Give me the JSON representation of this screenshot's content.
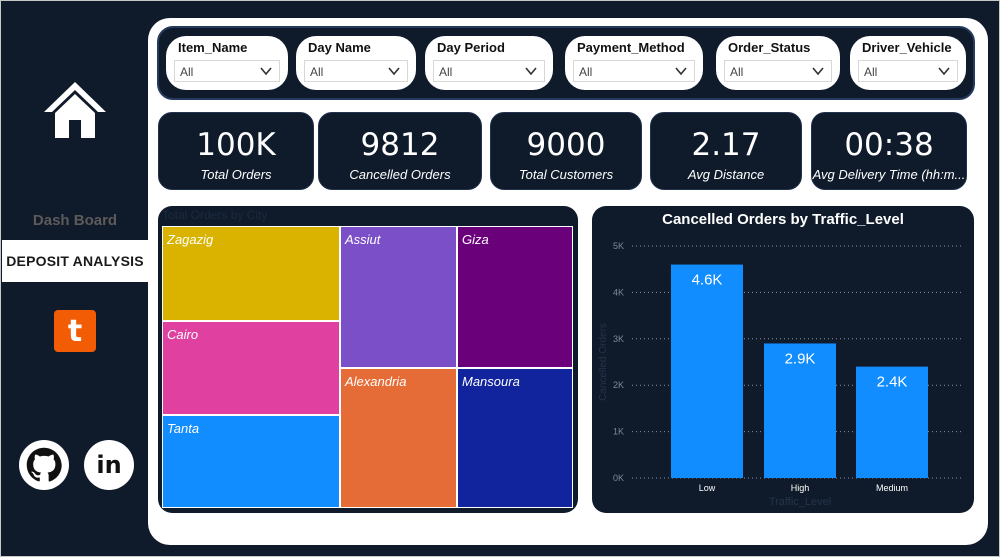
{
  "sidebar": {
    "nav_dashboard": "Dash Board",
    "nav_deposit": "DEPOSIT ANALYSIS",
    "tumblr_letter": "t",
    "linkedin_letters": "in"
  },
  "filters": [
    {
      "label": "Item_Name",
      "value": "All"
    },
    {
      "label": "Day Name",
      "value": "All"
    },
    {
      "label": "Day Period",
      "value": "All"
    },
    {
      "label": "Payment_Method",
      "value": "All"
    },
    {
      "label": "Order_Status",
      "value": "All"
    },
    {
      "label": "Driver_Vehicle",
      "value": "All"
    }
  ],
  "kpis": [
    {
      "value": "100K",
      "label": "Total Orders"
    },
    {
      "value": "9812",
      "label": "Cancelled Orders"
    },
    {
      "value": "9000",
      "label": "Total Customers"
    },
    {
      "value": "2.17",
      "label": "Avg Distance"
    },
    {
      "value": "00:38",
      "label": "Avg Delivery Time (hh:m..."
    }
  ],
  "treemap": {
    "title": "Total Orders by City",
    "cells": [
      {
        "name": "Zagazig",
        "color": "#d9b300"
      },
      {
        "name": "Cairo",
        "color": "#e040a0"
      },
      {
        "name": "Tanta",
        "color": "#118dff"
      },
      {
        "name": "Assiut",
        "color": "#7b4fc7"
      },
      {
        "name": "Alexandria",
        "color": "#e66c37"
      },
      {
        "name": "Giza",
        "color": "#6b007b"
      },
      {
        "name": "Mansoura",
        "color": "#12239e"
      }
    ]
  },
  "colors": {
    "dark": "#0f1b2b",
    "bar": "#118dff"
  },
  "chart_data": {
    "type": "bar",
    "title": "Cancelled Orders by Traffic_Level",
    "categories": [
      "Low",
      "High",
      "Medium"
    ],
    "values": [
      4600,
      2900,
      2400
    ],
    "data_labels": [
      "4.6K",
      "2.9K",
      "2.4K"
    ],
    "xlabel": "Traffic_Level",
    "ylabel": "Cancelled Orders",
    "ylim": [
      0,
      5000
    ],
    "yticks": [
      0,
      1000,
      2000,
      3000,
      4000,
      5000
    ],
    "ytick_labels": [
      "0K",
      "1K",
      "2K",
      "3K",
      "4K",
      "5K"
    ],
    "grid": true
  }
}
